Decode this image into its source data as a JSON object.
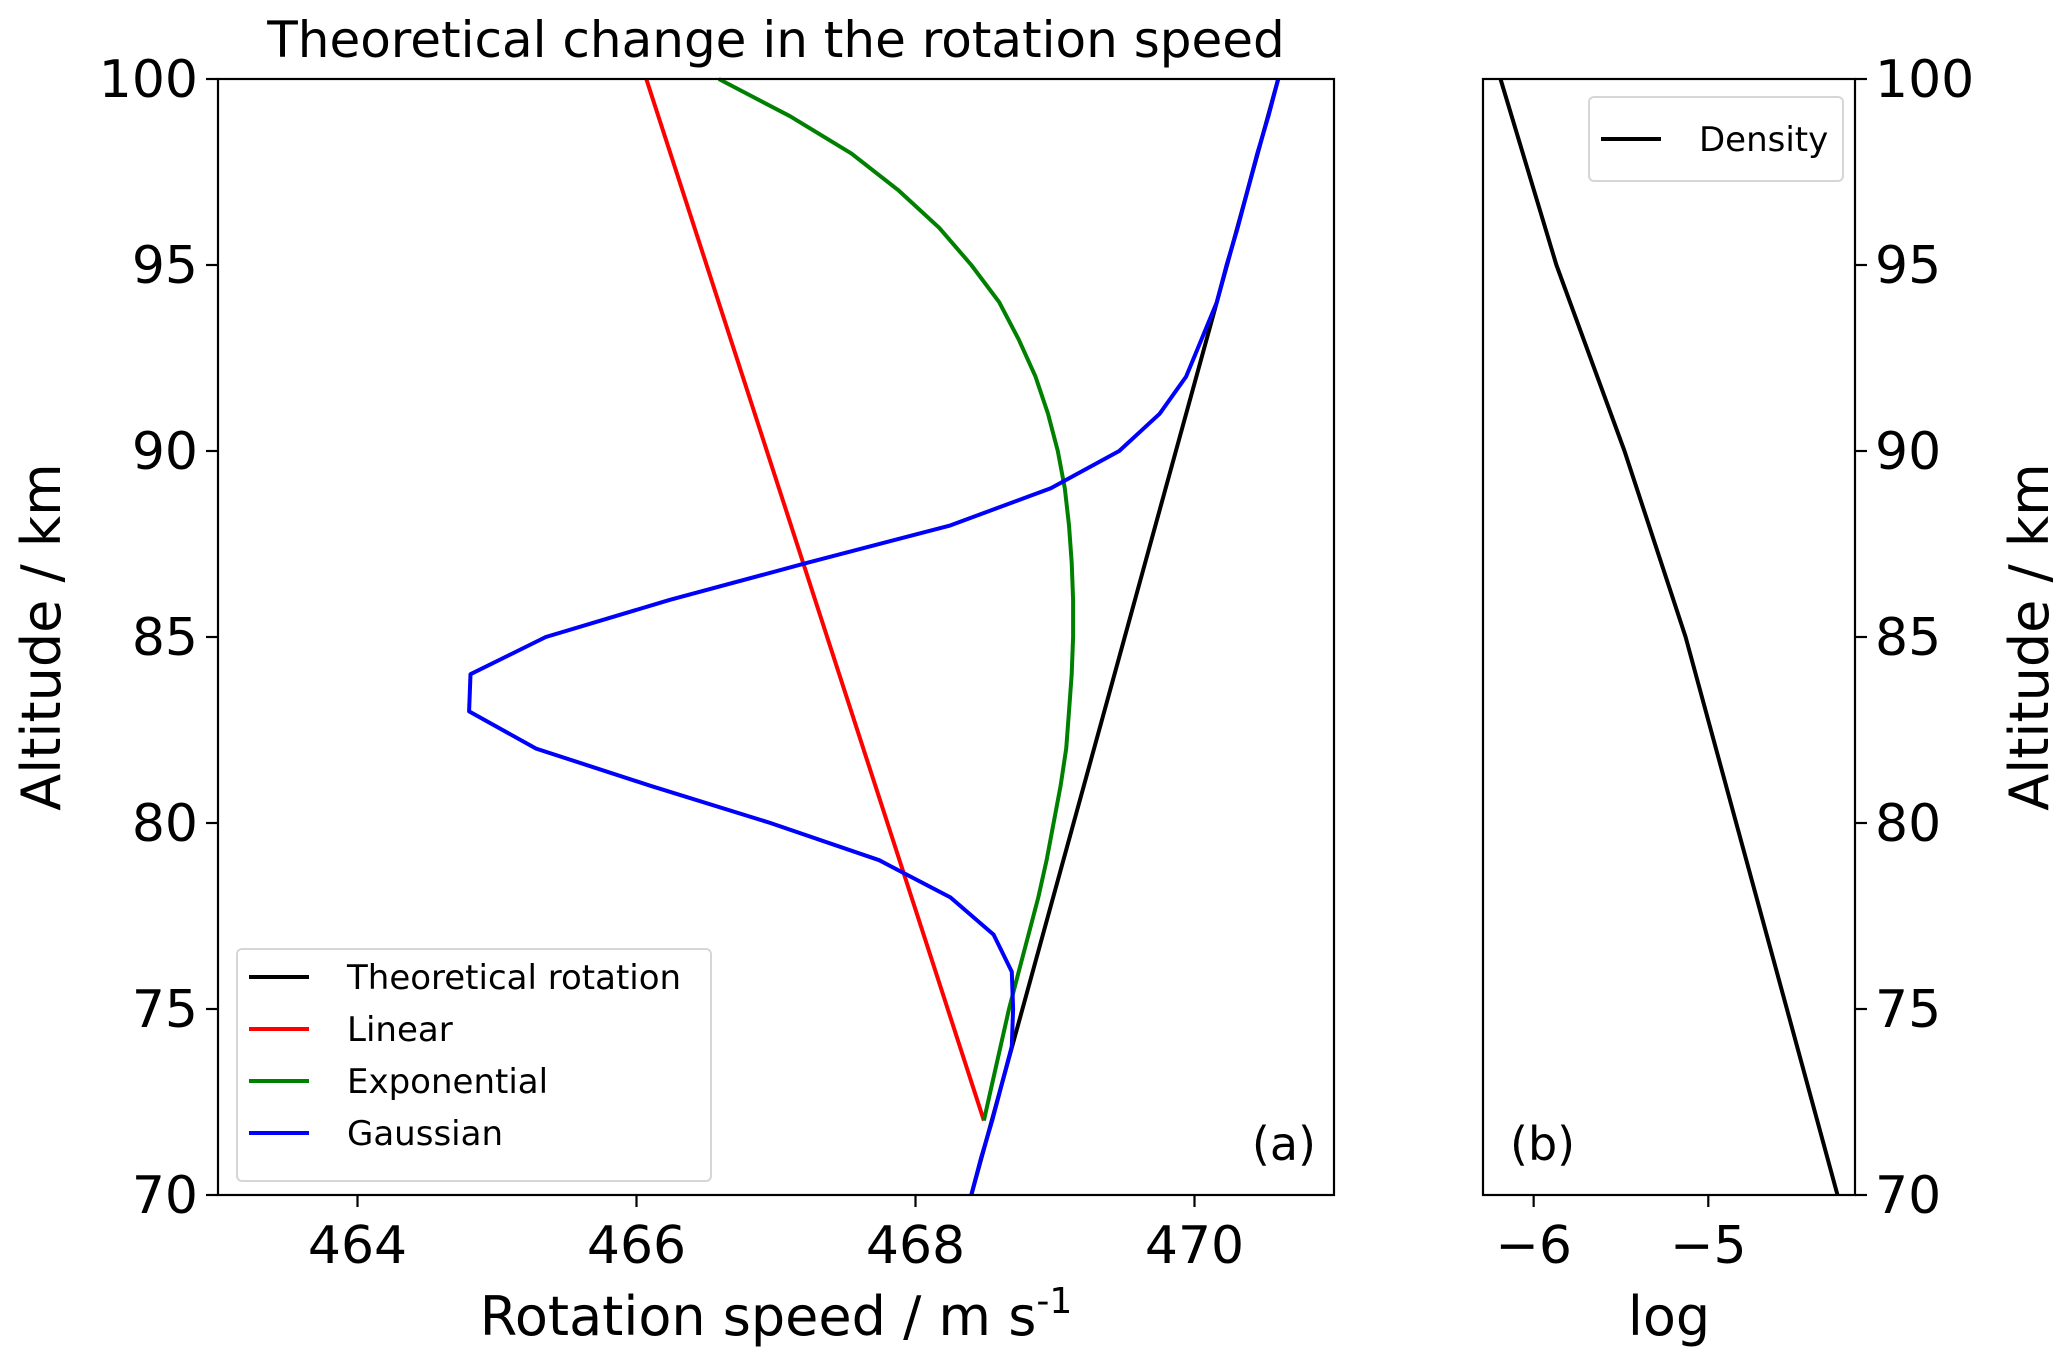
{
  "chart_data": [
    {
      "panel": "(a)",
      "type": "line",
      "title": "Theoretical change in the rotation speed",
      "xlabel": "Rotation speed / m s",
      "xlabel_superscript": "-1",
      "ylabel": "Altitude / km",
      "xlim": [
        463.0,
        471.0
      ],
      "ylim": [
        70,
        100
      ],
      "xticks": [
        464,
        466,
        468,
        470
      ],
      "yticks": [
        70,
        75,
        80,
        85,
        90,
        95,
        100
      ],
      "grid": false,
      "legend_position": "lower-left",
      "annotation": "(a)",
      "series": [
        {
          "name": "Theoretical rotation",
          "color": "#000000",
          "points": [
            [
              468.4,
              70
            ],
            [
              470.6,
              100
            ]
          ]
        },
        {
          "name": "Linear",
          "color": "#ff0000",
          "points": [
            [
              468.49,
              72
            ],
            [
              466.07,
              100
            ]
          ]
        },
        {
          "name": "Exponential",
          "color": "#008000",
          "points": [
            [
              468.49,
              72
            ],
            [
              468.55,
              73
            ],
            [
              468.61,
              74
            ],
            [
              468.67,
              75
            ],
            [
              468.74,
              76
            ],
            [
              468.81,
              77
            ],
            [
              468.88,
              78
            ],
            [
              468.94,
              79
            ],
            [
              468.99,
              80
            ],
            [
              469.04,
              81
            ],
            [
              469.08,
              82
            ],
            [
              469.1,
              83
            ],
            [
              469.12,
              84
            ],
            [
              469.13,
              85
            ],
            [
              469.13,
              86
            ],
            [
              469.12,
              87
            ],
            [
              469.1,
              88
            ],
            [
              469.07,
              89
            ],
            [
              469.02,
              90
            ],
            [
              468.95,
              91
            ],
            [
              468.86,
              92
            ],
            [
              468.74,
              93
            ],
            [
              468.6,
              94
            ],
            [
              468.4,
              95
            ],
            [
              468.17,
              96
            ],
            [
              467.88,
              97
            ],
            [
              467.54,
              98
            ],
            [
              467.1,
              99
            ],
            [
              466.59,
              100
            ]
          ]
        },
        {
          "name": "Gaussian",
          "color": "#0000ff",
          "points": [
            [
              468.4,
              70
            ],
            [
              468.47,
              71
            ],
            [
              468.55,
              72
            ],
            [
              468.62,
              73
            ],
            [
              468.69,
              74
            ],
            [
              468.7,
              75
            ],
            [
              468.69,
              76
            ],
            [
              468.56,
              77
            ],
            [
              468.25,
              78
            ],
            [
              467.74,
              79
            ],
            [
              466.96,
              80
            ],
            [
              466.1,
              81
            ],
            [
              465.28,
              82
            ],
            [
              464.8,
              83
            ],
            [
              464.81,
              84
            ],
            [
              465.35,
              85
            ],
            [
              466.24,
              86
            ],
            [
              467.23,
              87
            ],
            [
              468.25,
              88
            ],
            [
              468.97,
              89
            ],
            [
              469.46,
              90
            ],
            [
              469.75,
              91
            ],
            [
              469.94,
              92
            ],
            [
              470.05,
              93
            ],
            [
              470.16,
              94
            ],
            [
              470.23,
              95
            ],
            [
              470.31,
              96
            ],
            [
              470.38,
              97
            ],
            [
              470.45,
              98
            ],
            [
              470.53,
              99
            ],
            [
              470.6,
              100
            ]
          ]
        }
      ]
    },
    {
      "panel": "(b)",
      "type": "line",
      "title": "",
      "xlabel": "log",
      "ylabel": "Altitude / km",
      "ylabel_side": "right",
      "xlim": [
        -6.29,
        -4.16
      ],
      "ylim": [
        70,
        100
      ],
      "xticks": [
        -6,
        -5
      ],
      "xtick_labels": [
        "−6",
        "−5"
      ],
      "yticks": [
        70,
        75,
        80,
        85,
        90,
        95,
        100
      ],
      "grid": false,
      "legend_position": "top-right",
      "annotation": "(b)",
      "series": [
        {
          "name": "Density",
          "color": "#000000",
          "points": [
            [
              -4.26,
              70
            ],
            [
              -4.55,
              75
            ],
            [
              -4.84,
              80
            ],
            [
              -5.13,
              85
            ],
            [
              -5.48,
              90
            ],
            [
              -5.87,
              95
            ],
            [
              -6.19,
              100
            ]
          ]
        }
      ]
    }
  ]
}
